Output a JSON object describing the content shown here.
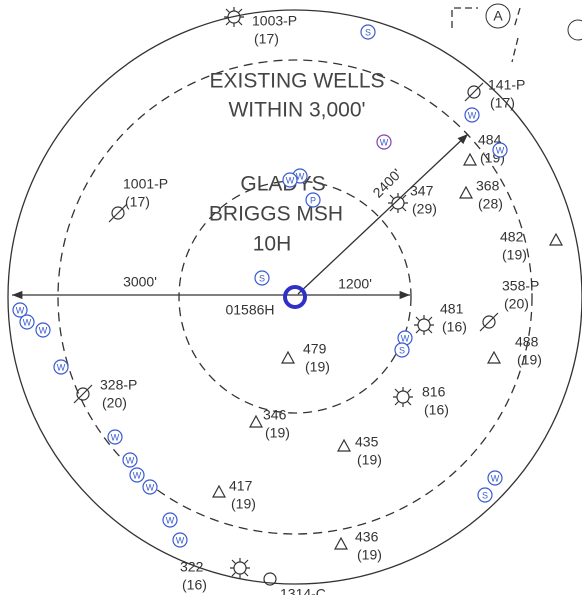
{
  "title": {
    "line1": "EXISTING WELLS",
    "line2": "WITHIN 3,000'"
  },
  "subject_well": {
    "line1": "GLADYS",
    "line2": "BRIGGS MSH",
    "line3": "10H",
    "id": "01586H"
  },
  "distances": {
    "outer": "3000'",
    "middle": "2400'",
    "inner": "1200'"
  },
  "callout": "A",
  "wells": [
    {
      "id": "1003-P",
      "number": "(17)"
    },
    {
      "id": "141-P",
      "number": "(17)"
    },
    {
      "id": "484",
      "number": "(19)"
    },
    {
      "id": "1001-P",
      "number": "(17)"
    },
    {
      "id": "347",
      "number": "(29)"
    },
    {
      "id": "368",
      "number": "(28)"
    },
    {
      "id": "482",
      "number": "(19)"
    },
    {
      "id": "358-P",
      "number": "(20)"
    },
    {
      "id": "481",
      "number": "(16)"
    },
    {
      "id": "488",
      "number": "(19)"
    },
    {
      "id": "479",
      "number": "(19)"
    },
    {
      "id": "328-P",
      "number": "(20)"
    },
    {
      "id": "816",
      "number": "(16)"
    },
    {
      "id": "346",
      "number": "(19)"
    },
    {
      "id": "435",
      "number": "(19)"
    },
    {
      "id": "417",
      "number": "(19)"
    },
    {
      "id": "436",
      "number": "(19)"
    },
    {
      "id": "322",
      "number": "(16)"
    },
    {
      "id": "1314-C"
    }
  ],
  "markers": [
    "S",
    "W",
    "W",
    "W",
    "W",
    "P",
    "S",
    "W",
    "S",
    "W",
    "W",
    "W",
    "W",
    "W",
    "W",
    "W",
    "W",
    "W",
    "W",
    "W",
    "W",
    "S"
  ]
}
